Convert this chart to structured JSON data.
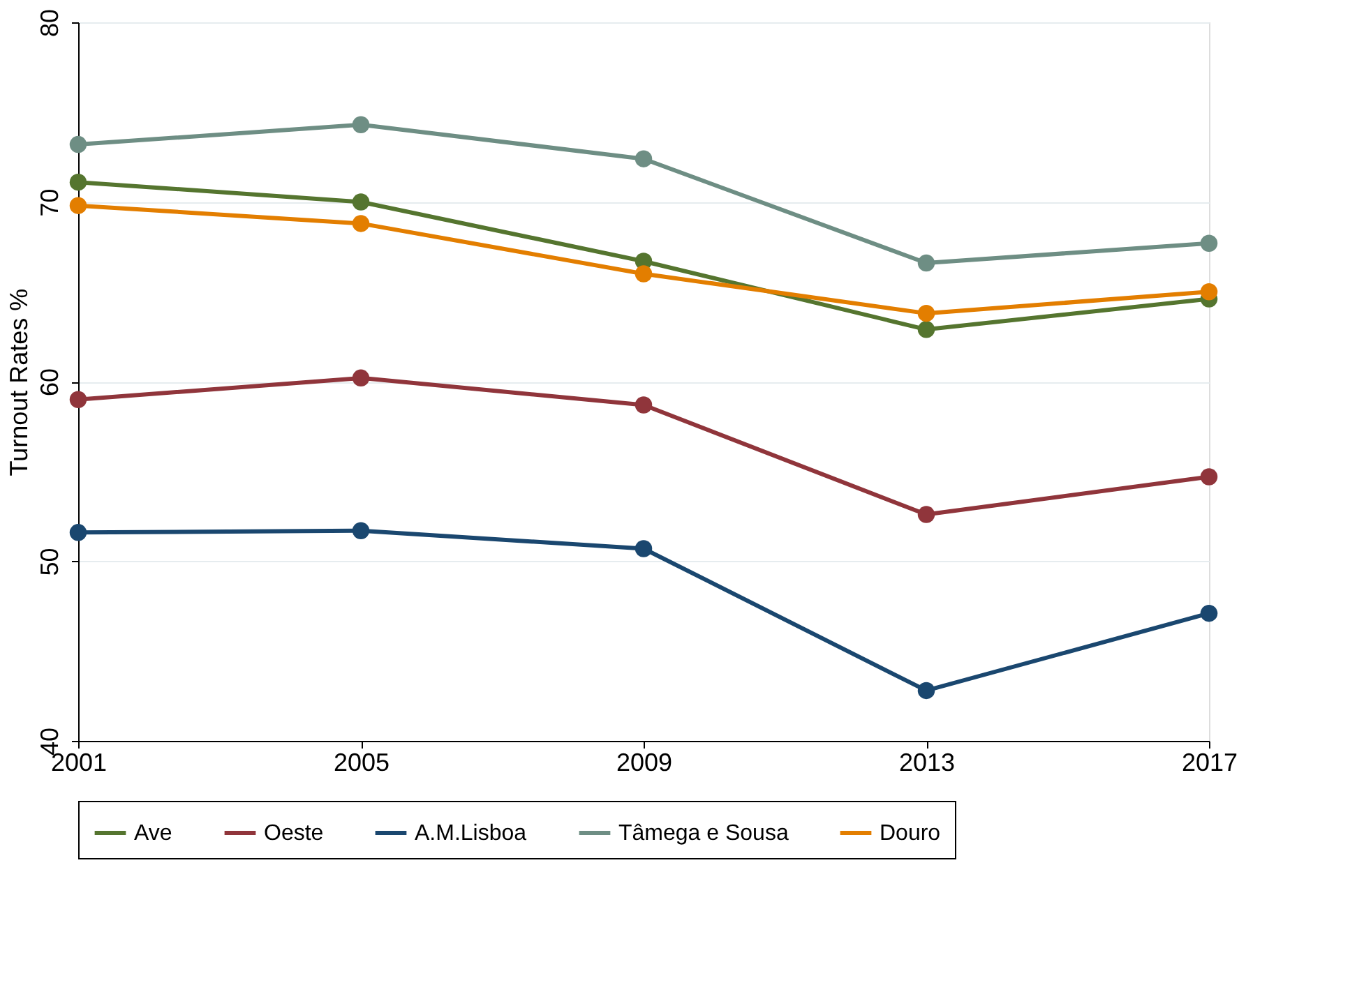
{
  "chart_data": {
    "type": "line",
    "ylabel": "Turnout Rates %",
    "x": [
      2001,
      2005,
      2009,
      2013,
      2017
    ],
    "xlim": [
      2001,
      2017
    ],
    "xticks": [
      2001,
      2005,
      2009,
      2013,
      2017
    ],
    "ylim": [
      40,
      80
    ],
    "yticks": [
      40,
      50,
      60,
      70,
      80
    ],
    "grid": "y",
    "legend": "bottom",
    "marker": "circle",
    "line_style": "solid",
    "series": [
      {
        "name": "Ave",
        "color": "#55752f",
        "values": [
          71.1,
          70.0,
          66.7,
          62.9,
          64.6
        ]
      },
      {
        "name": "Oeste",
        "color": "#90353b",
        "values": [
          59.0,
          60.2,
          58.7,
          52.6,
          54.7
        ]
      },
      {
        "name": "A.M.Lisboa",
        "color": "#1a476f",
        "values": [
          51.6,
          51.7,
          50.7,
          42.8,
          47.1
        ]
      },
      {
        "name": "Tâmega e Sousa",
        "color": "#6e8e84",
        "values": [
          73.2,
          74.3,
          72.4,
          66.6,
          67.7
        ]
      },
      {
        "name": "Douro",
        "color": "#e37e00",
        "values": [
          69.8,
          68.8,
          66.0,
          63.8,
          65.0
        ]
      }
    ]
  }
}
